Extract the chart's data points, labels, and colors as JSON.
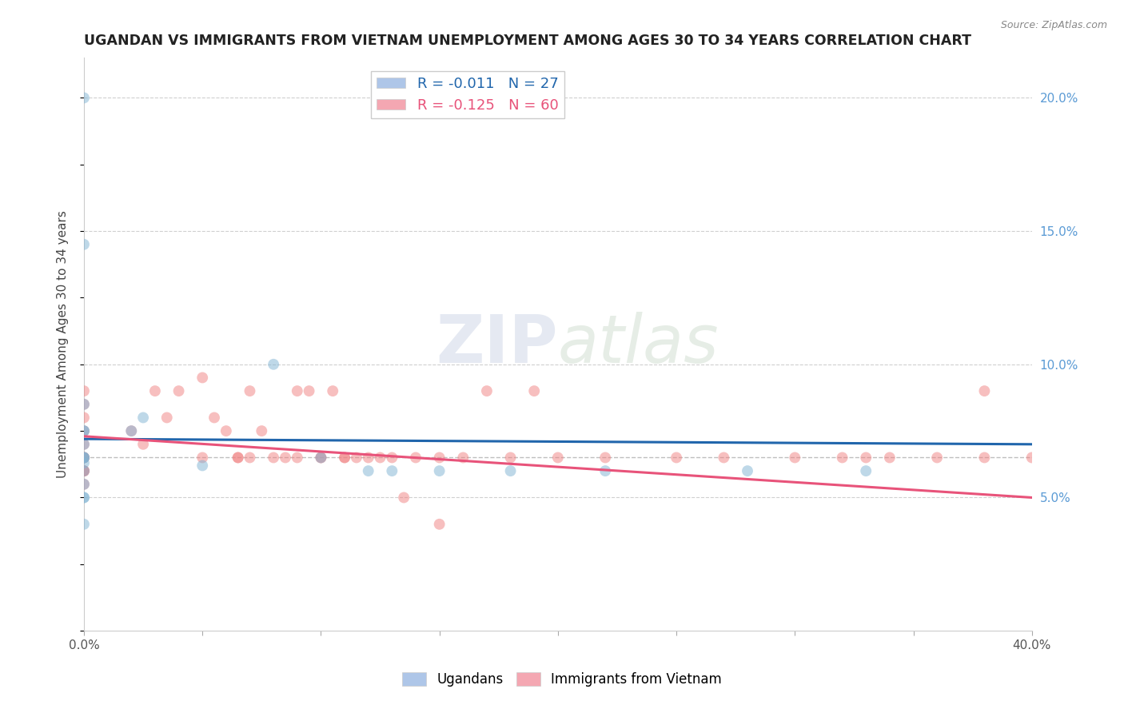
{
  "title": "UGANDAN VS IMMIGRANTS FROM VIETNAM UNEMPLOYMENT AMONG AGES 30 TO 34 YEARS CORRELATION CHART",
  "source": "Source: ZipAtlas.com",
  "ylabel": "Unemployment Among Ages 30 to 34 years",
  "xlim": [
    0.0,
    0.4
  ],
  "ylim": [
    0.0,
    0.215
  ],
  "xticks": [
    0.0,
    0.05,
    0.1,
    0.15,
    0.2,
    0.25,
    0.3,
    0.35,
    0.4
  ],
  "yticks_right": [
    0.0,
    0.05,
    0.1,
    0.15,
    0.2
  ],
  "ytick_right_labels": [
    "",
    "5.0%",
    "10.0%",
    "15.0%",
    "20.0%"
  ],
  "background_color": "#ffffff",
  "legend_r1": "R = -0.011",
  "legend_n1": "N = 27",
  "legend_r2": "R = -0.125",
  "legend_n2": "N = 60",
  "color1": "#aec6e8",
  "color2": "#f4a7b2",
  "ugandan_x": [
    0.0,
    0.0,
    0.0,
    0.0,
    0.0,
    0.0,
    0.0,
    0.0,
    0.0,
    0.0,
    0.0,
    0.0,
    0.0,
    0.0,
    0.0,
    0.02,
    0.025,
    0.05,
    0.08,
    0.1,
    0.12,
    0.13,
    0.15,
    0.18,
    0.22,
    0.28,
    0.33
  ],
  "ugandan_y": [
    0.2,
    0.145,
    0.085,
    0.075,
    0.075,
    0.07,
    0.065,
    0.065,
    0.065,
    0.063,
    0.06,
    0.055,
    0.05,
    0.05,
    0.04,
    0.075,
    0.08,
    0.062,
    0.1,
    0.065,
    0.06,
    0.06,
    0.06,
    0.06,
    0.06,
    0.06,
    0.06
  ],
  "vietnam_x": [
    0.0,
    0.0,
    0.0,
    0.0,
    0.0,
    0.0,
    0.0,
    0.0,
    0.0,
    0.0,
    0.0,
    0.0,
    0.02,
    0.025,
    0.03,
    0.035,
    0.04,
    0.05,
    0.05,
    0.055,
    0.06,
    0.065,
    0.065,
    0.07,
    0.07,
    0.075,
    0.08,
    0.085,
    0.09,
    0.09,
    0.095,
    0.1,
    0.1,
    0.105,
    0.11,
    0.11,
    0.115,
    0.12,
    0.125,
    0.13,
    0.135,
    0.14,
    0.15,
    0.15,
    0.16,
    0.17,
    0.18,
    0.19,
    0.2,
    0.22,
    0.25,
    0.27,
    0.3,
    0.32,
    0.33,
    0.34,
    0.36,
    0.38,
    0.38,
    0.4
  ],
  "vietnam_y": [
    0.09,
    0.085,
    0.08,
    0.075,
    0.07,
    0.065,
    0.065,
    0.065,
    0.06,
    0.06,
    0.06,
    0.055,
    0.075,
    0.07,
    0.09,
    0.08,
    0.09,
    0.095,
    0.065,
    0.08,
    0.075,
    0.065,
    0.065,
    0.09,
    0.065,
    0.075,
    0.065,
    0.065,
    0.09,
    0.065,
    0.09,
    0.065,
    0.065,
    0.09,
    0.065,
    0.065,
    0.065,
    0.065,
    0.065,
    0.065,
    0.05,
    0.065,
    0.04,
    0.065,
    0.065,
    0.09,
    0.065,
    0.09,
    0.065,
    0.065,
    0.065,
    0.065,
    0.065,
    0.065,
    0.065,
    0.065,
    0.065,
    0.065,
    0.09,
    0.065
  ],
  "color_ugandan": "#7fb3d3",
  "color_vietnam": "#f08080",
  "line_color_ugandan": "#2166ac",
  "line_color_vietnam": "#e8537a",
  "regline_ug": [
    0.0,
    0.4,
    0.072,
    0.07
  ],
  "regline_vn": [
    0.0,
    0.4,
    0.073,
    0.05
  ],
  "dashed_line_y": 0.065,
  "marker_size": 100,
  "alpha_scatter": 0.5
}
